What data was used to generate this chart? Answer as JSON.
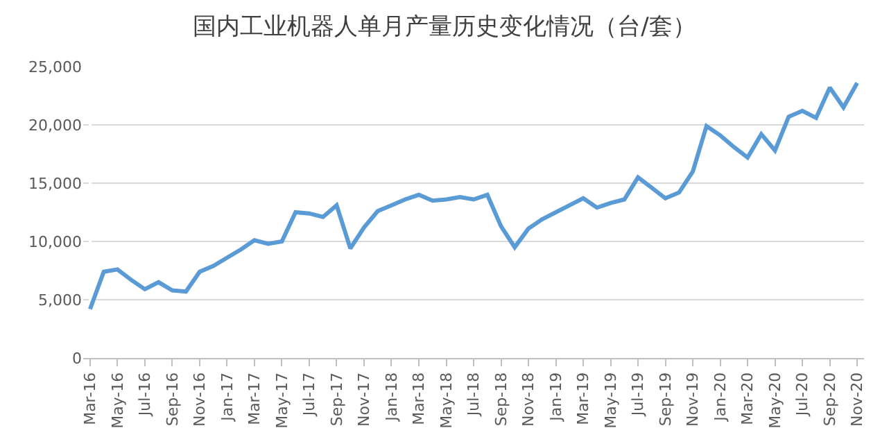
{
  "chart_data": {
    "type": "line",
    "title": "国内工业机器人单月产量历史变化情况（台/套）",
    "categories": [
      "Mar-16",
      null,
      "May-16",
      null,
      "Jul-16",
      null,
      "Sep-16",
      null,
      "Nov-16",
      null,
      "Jan-17",
      null,
      "Mar-17",
      null,
      "May-17",
      null,
      "Jul-17",
      null,
      "Sep-17",
      null,
      "Nov-17",
      null,
      "Jan-18",
      null,
      "Mar-18",
      null,
      "May-18",
      null,
      "Jul-18",
      null,
      "Sep-18",
      null,
      "Nov-18",
      null,
      "Jan-19",
      null,
      "Mar-19",
      null,
      "May-19",
      null,
      "Jul-19",
      null,
      "Sep-19",
      null,
      "Nov-19",
      null,
      "Jan-20",
      null,
      "Mar-20",
      null,
      "May-20",
      null,
      "Jul-20",
      null,
      "Sep-20",
      null,
      "Nov-20"
    ],
    "series": [
      {
        "color": "#5b9bd5",
        "values": [
          4200,
          7400,
          7600,
          6700,
          5900,
          6500,
          5800,
          5700,
          7400,
          7900,
          8600,
          9300,
          10100,
          9800,
          10000,
          12500,
          12400,
          12100,
          13100,
          9400,
          11200,
          12600,
          13100,
          13600,
          14000,
          13500,
          13600,
          13800,
          13600,
          14000,
          11300,
          9500,
          11100,
          11900,
          12500,
          13100,
          13700,
          12900,
          13300,
          13600,
          15500,
          14600,
          13700,
          14200,
          16000,
          19900,
          19100,
          18100,
          17200,
          19200,
          17800,
          20700,
          21200,
          20600,
          23200,
          21500,
          23600
        ]
      }
    ],
    "ylim": [
      0,
      25000
    ],
    "yticks": [
      0,
      {
        "value": 5000,
        "label": "5,000"
      },
      {
        "value": 10000,
        "label": "10,000"
      },
      {
        "value": 15000,
        "label": "15,000"
      },
      {
        "value": 20000,
        "label": "20,000"
      },
      {
        "value": 25000,
        "label": "25,000"
      }
    ],
    "grid": "y",
    "legend": false,
    "marker": "none",
    "line_style": "solid"
  }
}
